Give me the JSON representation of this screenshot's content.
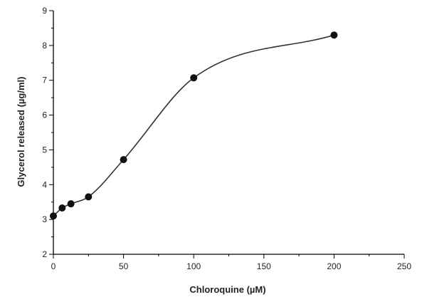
{
  "chart_data": {
    "type": "scatter",
    "title": "",
    "xlabel": "Chloroquine (µM)",
    "ylabel": "Glycerol released (µg/ml)",
    "xlim": [
      0,
      250
    ],
    "ylim": [
      2,
      9
    ],
    "xticks": [
      0,
      50,
      100,
      150,
      200,
      250
    ],
    "yticks": [
      2,
      3,
      4,
      5,
      6,
      7,
      8,
      9
    ],
    "grid": false,
    "legend": "none",
    "series": [
      {
        "name": "Glycerol release",
        "x": [
          0,
          6.25,
          12.5,
          25,
          50,
          100,
          200
        ],
        "y": [
          3.1,
          3.33,
          3.45,
          3.65,
          4.72,
          7.07,
          8.3
        ],
        "marker": "filled-circle",
        "fit_curve": true
      }
    ],
    "colors": {
      "line": "#333333",
      "marker": "#111111",
      "axis": "#000000"
    }
  }
}
